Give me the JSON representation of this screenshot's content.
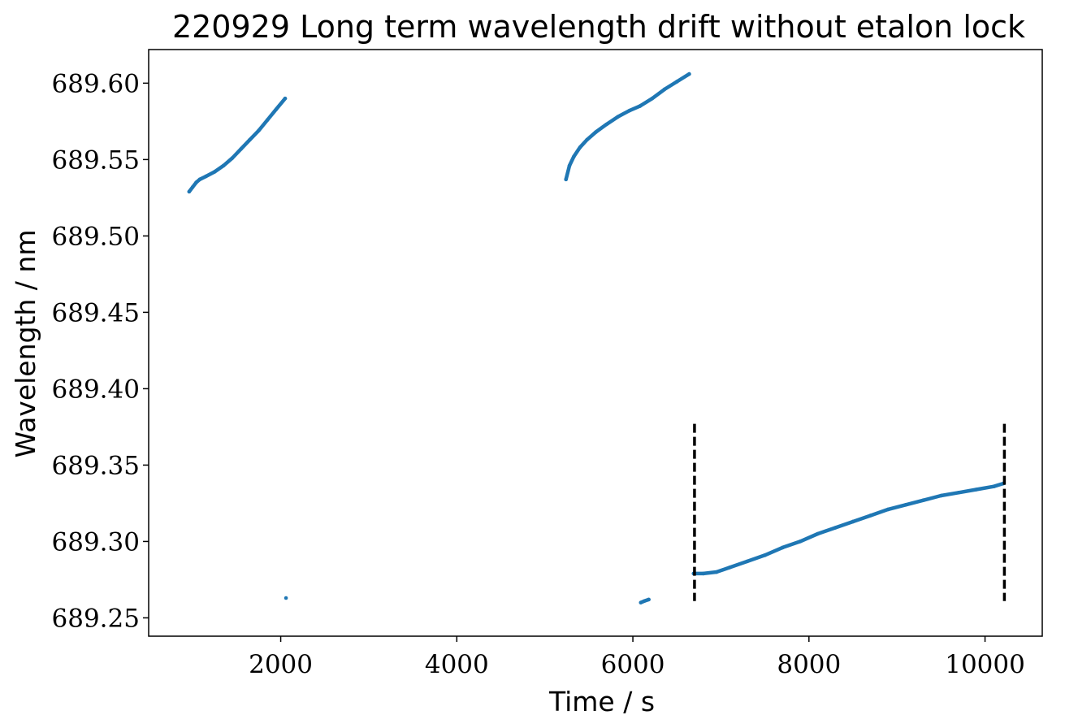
{
  "chart_data": {
    "type": "scatter",
    "title": "220929 Long term wavelength drift without etalon lock",
    "xlabel": "Time / s",
    "ylabel": "Wavelength / nm",
    "xlim": [
      500,
      10650
    ],
    "ylim": [
      689.238,
      689.622
    ],
    "xticks": [
      2000,
      4000,
      6000,
      8000,
      10000
    ],
    "yticks": [
      689.25,
      689.3,
      689.35,
      689.4,
      689.45,
      689.5,
      689.55,
      689.6
    ],
    "ytick_labels": [
      "689.25",
      "689.30",
      "689.35",
      "689.40",
      "689.45",
      "689.50",
      "689.55",
      "689.60"
    ],
    "grid": false,
    "colors": {
      "points": "#1f77b4",
      "marker_lines": "#000000"
    },
    "series": [
      {
        "x": [
          960,
          1000,
          1040,
          1080,
          1150,
          1250,
          1350,
          1450,
          1550,
          1650,
          1750,
          1850,
          1950,
          2050
        ],
        "y": [
          689.529,
          689.532,
          689.535,
          689.537,
          689.539,
          689.542,
          689.546,
          689.551,
          689.557,
          689.563,
          689.569,
          689.576,
          689.583,
          689.59
        ]
      },
      {
        "x": [
          2060
        ],
        "y": [
          689.263
        ]
      },
      {
        "x": [
          5240,
          5280,
          5330,
          5400,
          5480,
          5580,
          5700,
          5830,
          5960,
          6080,
          6220,
          6360,
          6500,
          6640
        ],
        "y": [
          689.537,
          689.546,
          689.552,
          689.558,
          689.563,
          689.568,
          689.573,
          689.578,
          689.582,
          689.585,
          689.59,
          689.596,
          689.601,
          689.606
        ]
      },
      {
        "x": [
          6090,
          6130,
          6180
        ],
        "y": [
          689.26,
          689.261,
          689.262
        ]
      },
      {
        "x": [
          6690,
          6800,
          6950,
          7100,
          7300,
          7500,
          7700,
          7900,
          8100,
          8300,
          8500,
          8700,
          8900,
          9100,
          9300,
          9500,
          9700,
          9900,
          10100,
          10210
        ],
        "y": [
          689.279,
          689.279,
          689.28,
          689.283,
          689.287,
          689.291,
          689.296,
          689.3,
          689.305,
          689.309,
          689.313,
          689.317,
          689.321,
          689.324,
          689.327,
          689.33,
          689.332,
          689.334,
          689.336,
          689.338
        ]
      }
    ],
    "vlines": [
      {
        "x": 6700,
        "ymin": 689.261,
        "ymax": 689.377,
        "style": "dashed"
      },
      {
        "x": 10220,
        "ymin": 689.261,
        "ymax": 689.377,
        "style": "dashed"
      }
    ]
  }
}
